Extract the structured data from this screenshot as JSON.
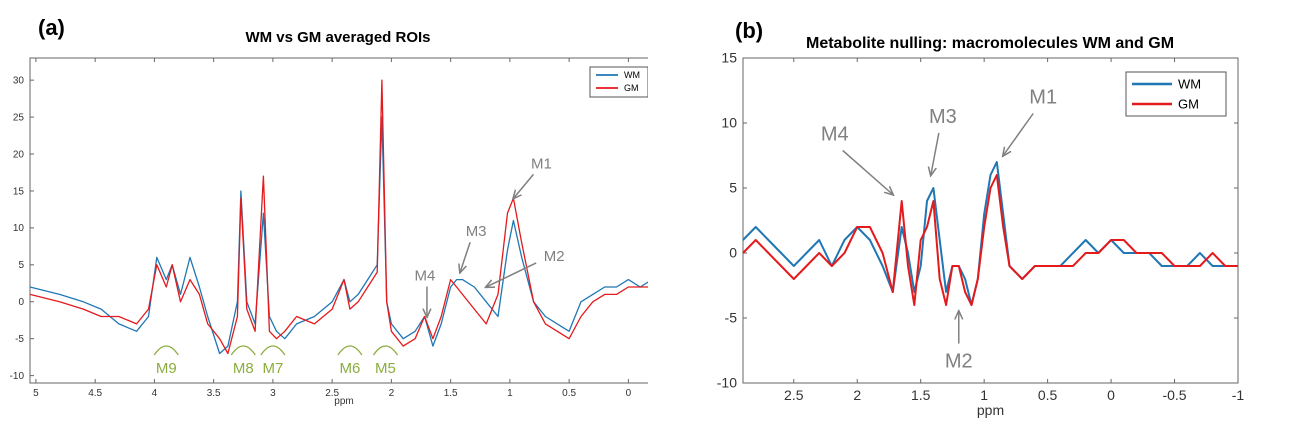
{
  "colors": {
    "wm": "#1f77b4",
    "gm": "#e41a1c",
    "annotation": "#808080",
    "mm_label": "#8bad3f"
  },
  "chart_data": [
    {
      "type": "line",
      "panel_label": "(a)",
      "title": "WM vs GM averaged ROIs",
      "xlabel": "ppm",
      "ylabel": "",
      "xlim": [
        5.05,
        -0.25
      ],
      "ylim": [
        -11,
        33
      ],
      "x_reversed": true,
      "xticks": [
        5,
        4.5,
        4,
        3.5,
        3,
        2.5,
        2,
        1.5,
        1,
        0.5,
        0
      ],
      "xtick_labels": [
        "5",
        "4.5",
        "4",
        "3.5",
        "3",
        "2.5",
        "2",
        "1.5",
        "1",
        "0.5",
        "0"
      ],
      "yticks": [
        -10,
        -5,
        0,
        5,
        10,
        15,
        20,
        25,
        30
      ],
      "ytick_labels": [
        "-10",
        "-5",
        "0",
        "5",
        "10",
        "15",
        "20",
        "25",
        "30"
      ],
      "grid": false,
      "legend": [
        "WM",
        "GM"
      ],
      "legend_position": "top-right",
      "series": [
        {
          "name": "WM",
          "x": [
            5.05,
            4.8,
            4.6,
            4.45,
            4.3,
            4.15,
            4.05,
            3.98,
            3.9,
            3.85,
            3.78,
            3.7,
            3.62,
            3.55,
            3.45,
            3.38,
            3.3,
            3.27,
            3.22,
            3.15,
            3.08,
            3.03,
            2.97,
            2.9,
            2.8,
            2.65,
            2.5,
            2.4,
            2.35,
            2.28,
            2.2,
            2.12,
            2.08,
            2.04,
            2.0,
            1.9,
            1.8,
            1.72,
            1.65,
            1.58,
            1.5,
            1.45,
            1.4,
            1.3,
            1.2,
            1.1,
            1.02,
            0.97,
            0.9,
            0.8,
            0.7,
            0.6,
            0.5,
            0.4,
            0.3,
            0.2,
            0.1,
            0.0,
            -0.1,
            -0.2
          ],
          "y": [
            2,
            1,
            0,
            -1,
            -3,
            -4,
            -2,
            6,
            3,
            5,
            1,
            6,
            2,
            -2,
            -7,
            -6,
            0,
            15,
            0,
            -3,
            12,
            -2,
            -4,
            -5,
            -3,
            -2,
            0,
            3,
            0,
            1,
            3,
            5,
            25,
            0,
            -3,
            -5,
            -4,
            -2,
            -6,
            -3,
            2,
            3,
            3,
            2,
            0,
            -2,
            7,
            11,
            6,
            0,
            -2,
            -3,
            -4,
            0,
            1,
            2,
            2,
            3,
            2,
            3
          ]
        },
        {
          "name": "GM",
          "x": [
            5.05,
            4.8,
            4.6,
            4.45,
            4.3,
            4.15,
            4.05,
            3.98,
            3.9,
            3.85,
            3.78,
            3.7,
            3.62,
            3.55,
            3.45,
            3.38,
            3.3,
            3.27,
            3.22,
            3.15,
            3.08,
            3.03,
            2.97,
            2.9,
            2.8,
            2.65,
            2.5,
            2.4,
            2.35,
            2.28,
            2.2,
            2.12,
            2.08,
            2.04,
            2.0,
            1.9,
            1.8,
            1.72,
            1.65,
            1.58,
            1.5,
            1.45,
            1.4,
            1.3,
            1.2,
            1.1,
            1.02,
            0.97,
            0.9,
            0.8,
            0.7,
            0.6,
            0.5,
            0.4,
            0.3,
            0.2,
            0.1,
            0.0,
            -0.1,
            -0.2
          ],
          "y": [
            1,
            0,
            -1,
            -2,
            -2,
            -3,
            -1,
            5,
            2,
            5,
            0,
            3,
            1,
            -3,
            -5,
            -7,
            -2,
            14,
            -1,
            -4,
            17,
            -4,
            -5,
            -4,
            -2,
            -3,
            -1,
            3,
            -1,
            0,
            2,
            4,
            30,
            0,
            -4,
            -6,
            -5,
            -2,
            -5,
            -2,
            3,
            2,
            1,
            -1,
            -3,
            1,
            12,
            14,
            8,
            0,
            -3,
            -4,
            -5,
            -2,
            0,
            1,
            1,
            2,
            2,
            2
          ]
        }
      ],
      "annotations": [
        {
          "label": "M1",
          "x": 0.97,
          "y": 14
        },
        {
          "label": "M2",
          "x": 1.2,
          "y": 2
        },
        {
          "label": "M3",
          "x": 1.42,
          "y": 4
        },
        {
          "label": "M4",
          "x": 1.7,
          "y": -2
        }
      ],
      "region_labels": [
        {
          "label": "M9",
          "x": 3.9
        },
        {
          "label": "M8",
          "x": 3.25
        },
        {
          "label": "M7",
          "x": 3.0
        },
        {
          "label": "M6",
          "x": 2.35
        },
        {
          "label": "M5",
          "x": 2.05
        }
      ]
    },
    {
      "type": "line",
      "panel_label": "(b)",
      "title": "Metabolite nulling: macromolecules WM and GM",
      "xlabel": "ppm",
      "ylabel": "",
      "xlim": [
        2.9,
        -1.0
      ],
      "ylim": [
        -10,
        15
      ],
      "x_reversed": true,
      "xticks": [
        2.5,
        2,
        1.5,
        1,
        0.5,
        0,
        -0.5,
        -1
      ],
      "xtick_labels": [
        "2.5",
        "2",
        "1.5",
        "1",
        "0.5",
        "0",
        "-0.5",
        "-1"
      ],
      "yticks": [
        -10,
        -5,
        0,
        5,
        10,
        15
      ],
      "ytick_labels": [
        "-10",
        "-5",
        "0",
        "5",
        "10",
        "15"
      ],
      "grid": false,
      "legend": [
        "WM",
        "GM"
      ],
      "legend_position": "top-right",
      "series": [
        {
          "name": "WM",
          "x": [
            2.9,
            2.8,
            2.7,
            2.6,
            2.5,
            2.4,
            2.3,
            2.2,
            2.1,
            2.0,
            1.9,
            1.8,
            1.72,
            1.65,
            1.6,
            1.55,
            1.5,
            1.45,
            1.4,
            1.35,
            1.3,
            1.25,
            1.2,
            1.15,
            1.1,
            1.05,
            1.0,
            0.95,
            0.9,
            0.85,
            0.8,
            0.7,
            0.6,
            0.5,
            0.4,
            0.3,
            0.2,
            0.1,
            0.0,
            -0.1,
            -0.2,
            -0.3,
            -0.4,
            -0.5,
            -0.6,
            -0.7,
            -0.8,
            -0.9,
            -1.0
          ],
          "y": [
            1,
            2,
            1,
            0,
            -1,
            0,
            1,
            -1,
            1,
            2,
            1,
            -1,
            -3,
            2,
            0,
            -3,
            -1,
            4,
            5,
            1,
            -3,
            -1,
            -1,
            -2,
            -4,
            -2,
            3,
            6,
            7,
            3,
            -1,
            -2,
            -1,
            -1,
            -1,
            0,
            1,
            0,
            1,
            0,
            0,
            0,
            -1,
            -1,
            -1,
            0,
            -1,
            -1,
            -1
          ]
        },
        {
          "name": "GM",
          "x": [
            2.9,
            2.8,
            2.7,
            2.6,
            2.5,
            2.4,
            2.3,
            2.2,
            2.1,
            2.0,
            1.9,
            1.8,
            1.72,
            1.65,
            1.6,
            1.55,
            1.5,
            1.45,
            1.4,
            1.35,
            1.3,
            1.25,
            1.2,
            1.15,
            1.1,
            1.05,
            1.0,
            0.95,
            0.9,
            0.85,
            0.8,
            0.7,
            0.6,
            0.5,
            0.4,
            0.3,
            0.2,
            0.1,
            0.0,
            -0.1,
            -0.2,
            -0.3,
            -0.4,
            -0.5,
            -0.6,
            -0.7,
            -0.8,
            -0.9,
            -1.0
          ],
          "y": [
            0,
            1,
            0,
            -1,
            -2,
            -1,
            0,
            -1,
            0,
            2,
            2,
            0,
            -3,
            4,
            -1,
            -4,
            1,
            2,
            4,
            -2,
            -4,
            -1,
            -1,
            -3,
            -4,
            -2,
            2,
            5,
            6,
            2,
            -1,
            -2,
            -1,
            -1,
            -1,
            -1,
            0,
            0,
            1,
            1,
            0,
            0,
            0,
            -1,
            -1,
            -1,
            0,
            -1,
            -1
          ]
        }
      ],
      "annotations": [
        {
          "label": "M1",
          "x": 0.85,
          "y": 7.5
        },
        {
          "label": "M2",
          "x": 1.2,
          "y": -4.5
        },
        {
          "label": "M3",
          "x": 1.42,
          "y": 6
        },
        {
          "label": "M4",
          "x": 1.72,
          "y": 4.5
        }
      ]
    }
  ]
}
